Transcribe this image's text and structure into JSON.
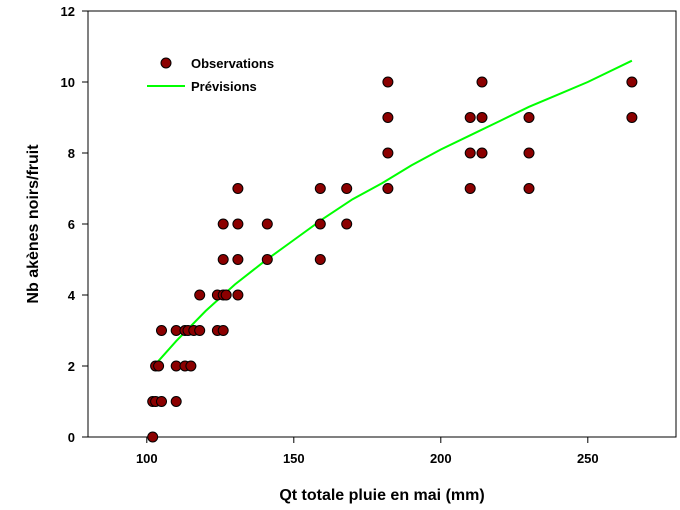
{
  "chart_data": {
    "type": "scatter",
    "xlabel": "Qt totale pluie en mai (mm)",
    "ylabel": "Nb akènes noirs/fruit",
    "xlim": [
      80,
      280
    ],
    "ylim": [
      0,
      12
    ],
    "xticks": [
      100,
      150,
      200,
      250
    ],
    "yticks": [
      0,
      2,
      4,
      6,
      8,
      10,
      12
    ],
    "grid": false,
    "legend_position": "top-left",
    "series": [
      {
        "name": "Observations",
        "kind": "scatter",
        "color": "#8b0000",
        "points": [
          [
            102,
            0
          ],
          [
            102,
            1
          ],
          [
            103,
            1
          ],
          [
            105,
            1
          ],
          [
            103,
            2
          ],
          [
            104,
            2
          ],
          [
            105,
            3
          ],
          [
            110,
            3
          ],
          [
            113,
            3
          ],
          [
            114,
            3
          ],
          [
            116,
            3
          ],
          [
            110,
            1
          ],
          [
            110,
            2
          ],
          [
            113,
            2
          ],
          [
            115,
            2
          ],
          [
            118,
            3
          ],
          [
            118,
            4
          ],
          [
            124,
            3
          ],
          [
            126,
            3
          ],
          [
            124,
            4
          ],
          [
            126,
            4
          ],
          [
            127,
            4
          ],
          [
            131,
            4
          ],
          [
            126,
            5
          ],
          [
            126,
            6
          ],
          [
            131,
            5
          ],
          [
            131,
            6
          ],
          [
            131,
            7
          ],
          [
            141,
            5
          ],
          [
            141,
            6
          ],
          [
            159,
            5
          ],
          [
            159,
            6
          ],
          [
            159,
            7
          ],
          [
            168,
            6
          ],
          [
            168,
            7
          ],
          [
            182,
            7
          ],
          [
            182,
            8
          ],
          [
            182,
            9
          ],
          [
            182,
            10
          ],
          [
            210,
            7
          ],
          [
            210,
            8
          ],
          [
            210,
            9
          ],
          [
            214,
            8
          ],
          [
            214,
            9
          ],
          [
            214,
            10
          ],
          [
            230,
            7
          ],
          [
            230,
            8
          ],
          [
            230,
            9
          ],
          [
            265,
            9
          ],
          [
            265,
            10
          ]
        ]
      },
      {
        "name": "Prévisions",
        "kind": "line",
        "color": "#00ff00",
        "points": [
          [
            103,
            2.05
          ],
          [
            110,
            2.7
          ],
          [
            120,
            3.55
          ],
          [
            130,
            4.3
          ],
          [
            140,
            4.95
          ],
          [
            150,
            5.55
          ],
          [
            160,
            6.15
          ],
          [
            170,
            6.7
          ],
          [
            180,
            7.15
          ],
          [
            190,
            7.65
          ],
          [
            200,
            8.1
          ],
          [
            210,
            8.5
          ],
          [
            220,
            8.9
          ],
          [
            230,
            9.3
          ],
          [
            240,
            9.65
          ],
          [
            250,
            10.0
          ],
          [
            265,
            10.6
          ]
        ]
      }
    ]
  }
}
